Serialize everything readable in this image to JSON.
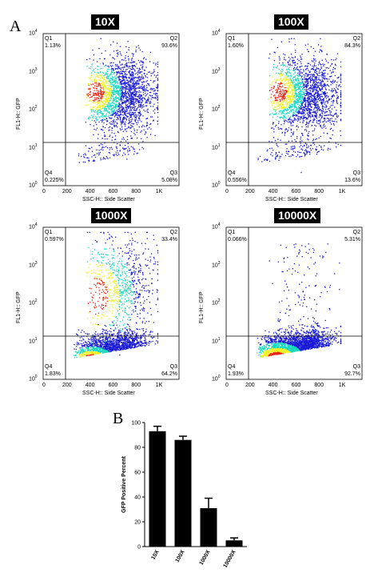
{
  "panel_labels": {
    "a": "A",
    "b": "B"
  },
  "colors": {
    "density_low": "#1a1ad6",
    "density_mid": "#18d9c0",
    "density_high": "#f0f020",
    "density_peak": "#e82010",
    "bar": "#000000"
  },
  "flow_plots": [
    {
      "tag": "10X",
      "q1": "Q1",
      "q1_pct": "1.13%",
      "q2": "Q2",
      "q2_pct": "93.6%",
      "q3": "Q3",
      "q3_pct": "5.08%",
      "q4": "Q4",
      "q4_pct": "0.225%",
      "ylabel": "FL1-H:: GFP",
      "xlabel": "SSC-H:: Side Scatter",
      "population": "upper"
    },
    {
      "tag": "100X",
      "q1": "Q1",
      "q1_pct": "1.60%",
      "q2": "Q2",
      "q2_pct": "84.3%",
      "q3": "Q3",
      "q3_pct": "13.6%",
      "q4": "Q4",
      "q4_pct": "0.556%",
      "ylabel": "FL1-H:: GFP",
      "xlabel": "SSC-H:: Side Scatter",
      "population": "upper"
    },
    {
      "tag": "1000X",
      "q1": "Q1",
      "q1_pct": "0.597%",
      "q2": "Q2",
      "q2_pct": "33.4%",
      "q3": "Q3",
      "q3_pct": "64.2%",
      "q4": "Q4",
      "q4_pct": "1.83%",
      "ylabel": "FL1-H:: GFP",
      "xlabel": "SSC-H:: Side Scatter",
      "population": "mixed"
    },
    {
      "tag": "10000X",
      "q1": "Q1",
      "q1_pct": "0.066%",
      "q2": "Q2",
      "q2_pct": "5.31%",
      "q3": "Q3",
      "q3_pct": "92.7%",
      "q4": "Q4",
      "q4_pct": "1.93%",
      "ylabel": "FL1-H:: GFP",
      "xlabel": "SSC-H:: Side Scatter",
      "population": "lower"
    }
  ],
  "flow_axes": {
    "x_ticks": [
      "0",
      "200",
      "400",
      "600",
      "800",
      "1K"
    ],
    "y_ticks": [
      {
        "base": "10",
        "exp": "0"
      },
      {
        "base": "10",
        "exp": "1"
      },
      {
        "base": "10",
        "exp": "2"
      },
      {
        "base": "10",
        "exp": "3"
      },
      {
        "base": "10",
        "exp": "4"
      }
    ]
  },
  "chart_data": {
    "type": "bar",
    "categories": [
      "10X",
      "100X",
      "1000X",
      "10000X"
    ],
    "values": [
      93,
      86,
      31,
      5
    ],
    "errors": [
      4,
      3,
      8,
      2
    ],
    "ylabel": "GFP Positive Percent",
    "ylim": [
      0,
      100
    ],
    "yticks": [
      0,
      20,
      40,
      60,
      80,
      100
    ]
  }
}
